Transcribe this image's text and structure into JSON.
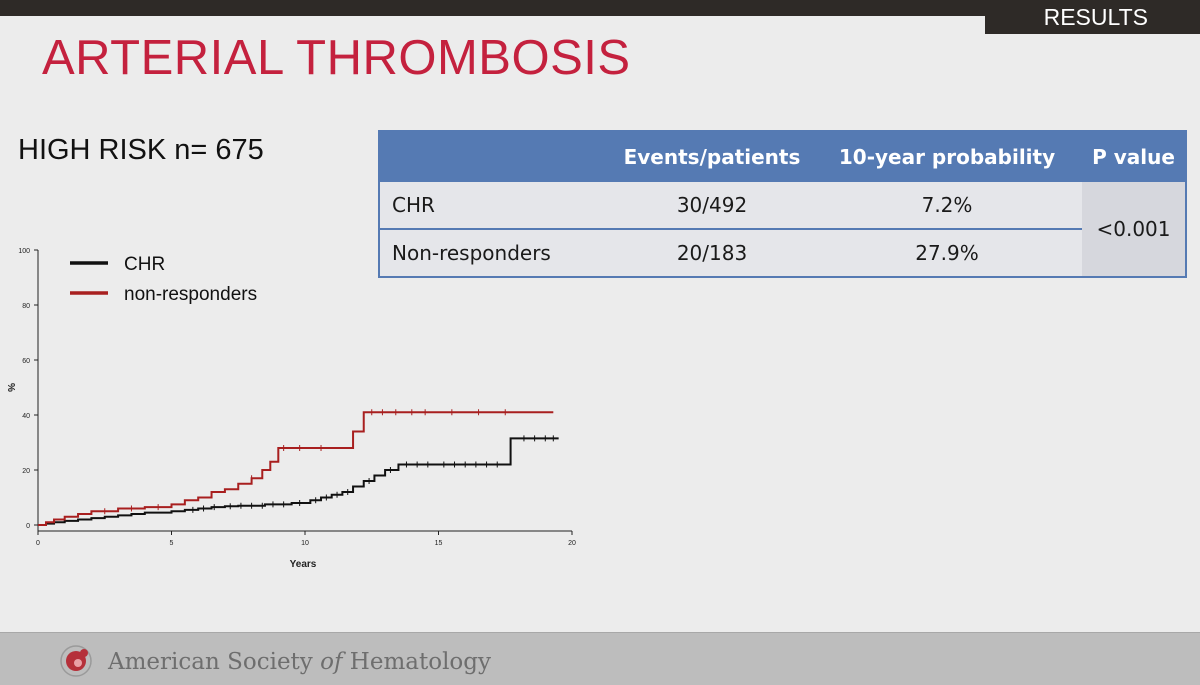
{
  "header": {
    "section": "RESULTS",
    "title": "ARTERIAL THROMBOSIS",
    "subtitle": "HIGH RISK n= 675"
  },
  "table": {
    "columns": [
      "",
      "Events/patients",
      "10-year probability",
      "P value"
    ],
    "rows": [
      {
        "group": "CHR",
        "events": "30/492",
        "probability": "7.2%"
      },
      {
        "group": "Non-responders",
        "events": "20/183",
        "probability": "27.9%"
      }
    ],
    "p_value": "<0.001"
  },
  "chart_data": {
    "type": "line",
    "title": "",
    "xlabel": "Years",
    "ylabel": "%",
    "xlim": [
      0,
      20
    ],
    "ylim": [
      0,
      100
    ],
    "xticks": [
      "0",
      "5",
      "10",
      "15",
      "20"
    ],
    "yticks": [
      "0",
      "20",
      "40",
      "60",
      "80",
      "100"
    ],
    "step": true,
    "legend": "top-left",
    "series": [
      {
        "name": "CHR",
        "color": "#111111",
        "x": [
          0,
          0.3,
          0.6,
          1.0,
          1.5,
          2.0,
          2.5,
          3.0,
          3.5,
          4.0,
          5.0,
          5.5,
          6.0,
          6.5,
          7.0,
          7.5,
          8.5,
          9.5,
          10.2,
          10.6,
          11.0,
          11.4,
          11.8,
          12.2,
          12.6,
          13.0,
          13.5,
          15.0,
          16.5,
          17.7,
          19.5
        ],
        "y": [
          0,
          0.5,
          1,
          1.5,
          2,
          2.5,
          3,
          3.5,
          4,
          4.5,
          5,
          5.5,
          6,
          6.5,
          6.8,
          7,
          7.5,
          8,
          9,
          10,
          11,
          12,
          14,
          16,
          18,
          20,
          22,
          22,
          22,
          31.5,
          31.5
        ]
      },
      {
        "name": "non-responders",
        "color": "#a81f1f",
        "x": [
          0,
          0.3,
          0.6,
          1.0,
          1.5,
          2.0,
          3.0,
          4.0,
          5.0,
          5.5,
          6.0,
          6.5,
          7.0,
          7.5,
          8.0,
          8.4,
          8.7,
          9.0,
          9.5,
          10.5,
          11.5,
          11.8,
          12.2,
          13.0,
          15.0,
          17.0,
          19.3
        ],
        "y": [
          0,
          1,
          2,
          3,
          4,
          5,
          6,
          6.5,
          7.5,
          9,
          10,
          12,
          13,
          15,
          17,
          20,
          23,
          28,
          28,
          28,
          28,
          34,
          41,
          41,
          41,
          41,
          41
        ]
      }
    ],
    "censor_marks": {
      "CHR": [
        5.8,
        6.2,
        6.6,
        7.2,
        7.6,
        8.0,
        8.4,
        8.8,
        9.2,
        9.8,
        10.4,
        10.8,
        11.2,
        11.6,
        12.4,
        13.2,
        13.8,
        14.2,
        14.6,
        15.2,
        15.6,
        16.0,
        16.4,
        16.8,
        17.2,
        18.2,
        18.6,
        19.0,
        19.3
      ],
      "non-responders": [
        2.5,
        3.5,
        4.5,
        8.0,
        9.2,
        9.8,
        10.6,
        12.5,
        12.9,
        13.4,
        14.0,
        14.5,
        15.5,
        16.5,
        17.5
      ]
    }
  },
  "footer": {
    "org_prefix": "American Society ",
    "org_of": "of",
    "org_suffix": " Hematology"
  }
}
